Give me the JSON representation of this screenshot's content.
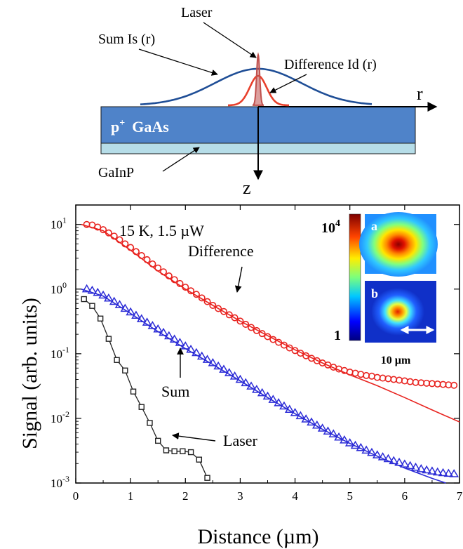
{
  "diagram": {
    "laser_label": "Laser",
    "sum_label": "Sum Is (r)",
    "difference_label": "Difference Id (r)",
    "r_axis": "r",
    "z_axis": "z",
    "layer_top_base": "p",
    "layer_top_sup": "+",
    "layer_top_rest": "GaAs",
    "layer_bottom": "GaInP",
    "colors": {
      "gaas": "#4f83c9",
      "gainp": "#b6dde8",
      "sum_curve": "#1f4e96",
      "diff_curve": "#e8402c",
      "laser": "#c0504d"
    }
  },
  "chart_data": {
    "type": "scatter",
    "xlabel": "Distance (µm)",
    "ylabel": "Signal (arb. units)",
    "xlim": [
      0,
      7
    ],
    "ylim": [
      0.001,
      20
    ],
    "yscale": "log",
    "x_ticks": [
      "0",
      "1",
      "2",
      "3",
      "4",
      "5",
      "6",
      "7"
    ],
    "y_ticks": [
      {
        "base": "10",
        "exp": "1",
        "value": 10
      },
      {
        "base": "10",
        "exp": "0",
        "value": 1
      },
      {
        "base": "10",
        "exp": "-1",
        "value": 0.1
      },
      {
        "base": "10",
        "exp": "-2",
        "value": 0.01
      },
      {
        "base": "10",
        "exp": "-3",
        "value": 0.001
      }
    ],
    "annotation_condition": "15 K,  1.5 µW",
    "annotation_difference": "Difference",
    "annotation_sum": "Sum",
    "annotation_laser": "Laser",
    "series": [
      {
        "name": "Difference",
        "marker": "circle",
        "color": "#e8231f",
        "x": [
          0.2,
          0.3,
          0.4,
          0.5,
          0.6,
          0.7,
          0.8,
          0.9,
          1.0,
          1.1,
          1.2,
          1.3,
          1.4,
          1.5,
          1.6,
          1.7,
          1.8,
          1.9,
          2.0,
          2.1,
          2.2,
          2.3,
          2.4,
          2.5,
          2.6,
          2.7,
          2.8,
          2.9,
          3.0,
          3.1,
          3.2,
          3.3,
          3.4,
          3.5,
          3.6,
          3.7,
          3.8,
          3.9,
          4.0,
          4.1,
          4.2,
          4.3,
          4.4,
          4.5,
          4.6,
          4.7,
          4.8,
          4.9,
          5.0,
          5.1,
          5.2,
          5.3,
          5.4,
          5.5,
          5.6,
          5.7,
          5.8,
          5.9,
          6.0,
          6.1,
          6.2,
          6.3,
          6.4,
          6.5,
          6.6,
          6.7,
          6.8,
          6.9
        ],
        "y": [
          10.0,
          9.8,
          9.1,
          8.3,
          7.4,
          6.6,
          5.8,
          5.0,
          4.4,
          3.8,
          3.3,
          2.85,
          2.45,
          2.12,
          1.85,
          1.6,
          1.4,
          1.22,
          1.07,
          0.94,
          0.83,
          0.73,
          0.64,
          0.56,
          0.5,
          0.45,
          0.4,
          0.36,
          0.32,
          0.285,
          0.255,
          0.228,
          0.205,
          0.184,
          0.166,
          0.15,
          0.136,
          0.123,
          0.112,
          0.102,
          0.093,
          0.085,
          0.078,
          0.072,
          0.067,
          0.062,
          0.058,
          0.055,
          0.052,
          0.05,
          0.048,
          0.046,
          0.045,
          0.043,
          0.042,
          0.041,
          0.04,
          0.039,
          0.038,
          0.037,
          0.036,
          0.0355,
          0.035,
          0.0345,
          0.034,
          0.0335,
          0.033,
          0.0325
        ]
      },
      {
        "name": "Difference fit",
        "marker": "line",
        "color": "#e8231f",
        "x": [
          0.1,
          0.5,
          1.0,
          1.5,
          2.0,
          2.5,
          3.0,
          3.5,
          4.0,
          4.5,
          5.0,
          5.5,
          6.0,
          6.5,
          7.0
        ],
        "y": [
          10.0,
          8.0,
          4.0,
          1.9,
          1.0,
          0.56,
          0.32,
          0.19,
          0.115,
          0.072,
          0.047,
          0.032,
          0.021,
          0.0135,
          0.0088
        ]
      },
      {
        "name": "Sum",
        "marker": "triangle",
        "color": "#2b2bd6",
        "x": [
          0.2,
          0.3,
          0.4,
          0.5,
          0.6,
          0.7,
          0.8,
          0.9,
          1.0,
          1.1,
          1.2,
          1.3,
          1.4,
          1.5,
          1.6,
          1.7,
          1.8,
          1.9,
          2.0,
          2.1,
          2.2,
          2.3,
          2.4,
          2.5,
          2.6,
          2.7,
          2.8,
          2.9,
          3.0,
          3.1,
          3.2,
          3.3,
          3.4,
          3.5,
          3.6,
          3.7,
          3.8,
          3.9,
          4.0,
          4.1,
          4.2,
          4.3,
          4.4,
          4.5,
          4.6,
          4.7,
          4.8,
          4.9,
          5.0,
          5.1,
          5.2,
          5.3,
          5.4,
          5.5,
          5.6,
          5.7,
          5.8,
          5.9,
          6.0,
          6.1,
          6.2,
          6.3,
          6.4,
          6.5,
          6.6,
          6.7,
          6.8,
          6.9
        ],
        "y": [
          1.0,
          0.95,
          0.88,
          0.8,
          0.72,
          0.64,
          0.57,
          0.5,
          0.44,
          0.39,
          0.345,
          0.305,
          0.27,
          0.24,
          0.212,
          0.188,
          0.167,
          0.148,
          0.131,
          0.116,
          0.103,
          0.091,
          0.081,
          0.072,
          0.064,
          0.057,
          0.0505,
          0.0448,
          0.0398,
          0.0353,
          0.0313,
          0.0278,
          0.0247,
          0.0219,
          0.0195,
          0.0173,
          0.0154,
          0.0137,
          0.0122,
          0.0109,
          0.0097,
          0.0087,
          0.0078,
          0.007,
          0.0063,
          0.0057,
          0.0051,
          0.0046,
          0.00415,
          0.0038,
          0.0035,
          0.0032,
          0.00295,
          0.0027,
          0.00252,
          0.00236,
          0.0022,
          0.00207,
          0.00195,
          0.00184,
          0.00174,
          0.00165,
          0.00158,
          0.00152,
          0.00147,
          0.00143,
          0.0014,
          0.00138
        ]
      },
      {
        "name": "Sum fit",
        "marker": "line",
        "color": "#2b2bd6",
        "x": [
          0.1,
          0.5,
          1.0,
          1.5,
          2.0,
          2.5,
          3.0,
          3.5,
          4.0,
          4.5,
          5.0,
          5.5,
          6.0,
          6.5,
          6.75
        ],
        "y": [
          1.0,
          0.78,
          0.42,
          0.22,
          0.12,
          0.068,
          0.038,
          0.021,
          0.0118,
          0.0068,
          0.0041,
          0.0026,
          0.0017,
          0.00118,
          0.001
        ]
      },
      {
        "name": "Laser",
        "marker": "square",
        "color": "#222222",
        "x": [
          0.15,
          0.3,
          0.45,
          0.6,
          0.75,
          0.9,
          1.05,
          1.2,
          1.35,
          1.5,
          1.65,
          1.8,
          1.95,
          2.1,
          2.25,
          2.4
        ],
        "y": [
          0.7,
          0.55,
          0.35,
          0.17,
          0.08,
          0.055,
          0.026,
          0.015,
          0.0085,
          0.0045,
          0.0032,
          0.0031,
          0.0031,
          0.003,
          0.0023,
          0.0012
        ]
      }
    ]
  },
  "inset": {
    "colorbar_max_base": "10",
    "colorbar_max_exp": "4",
    "colorbar_min": "1",
    "panel_a": "a",
    "panel_b": "b",
    "scalebar_label": "10 µm"
  }
}
